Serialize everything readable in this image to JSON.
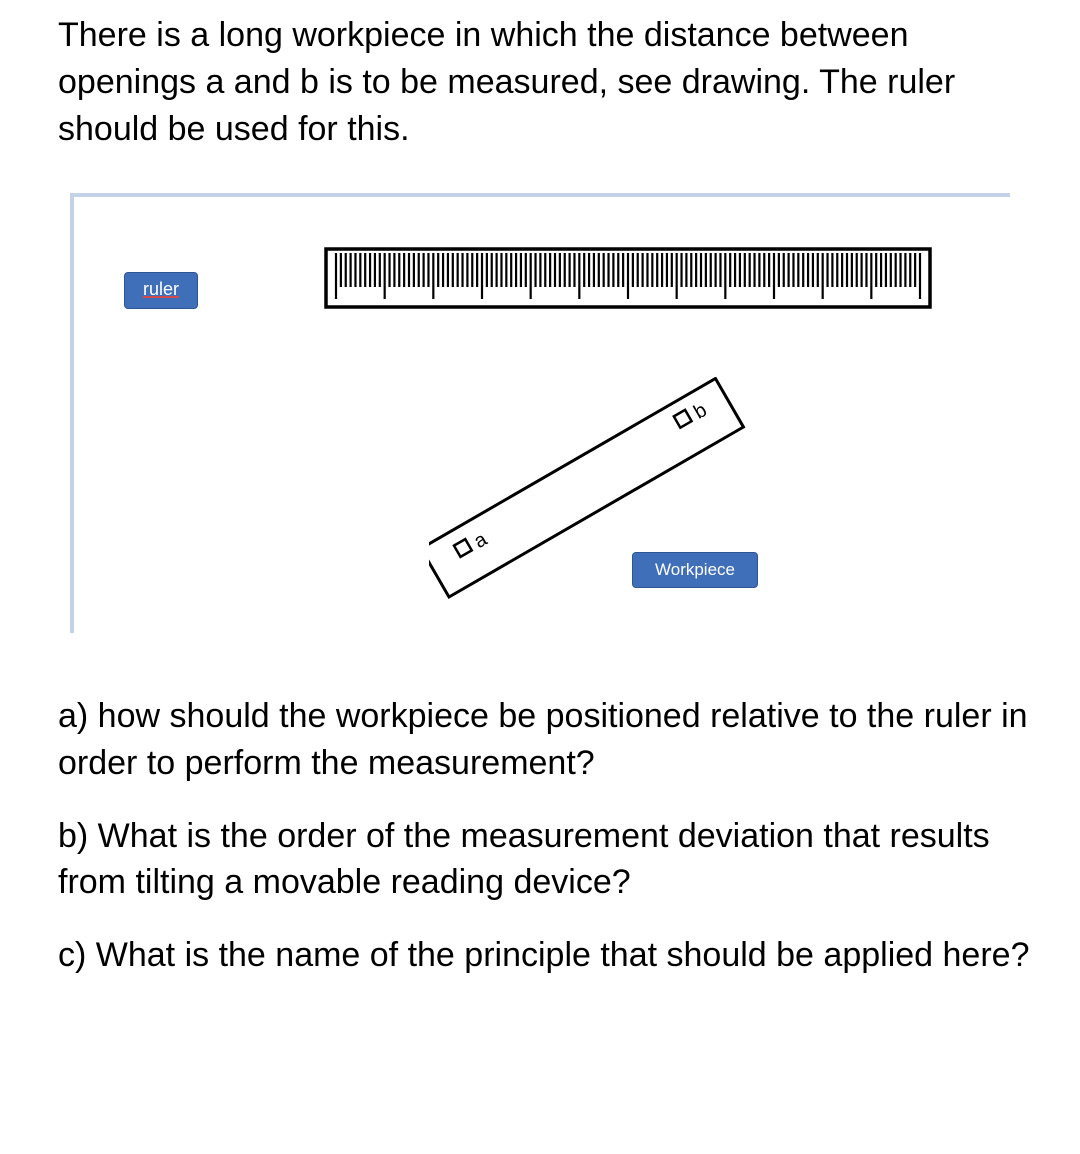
{
  "intro": "There is a long workpiece in which the distance between openings a and b is to be measured, see drawing. The ruler should be used for this.",
  "figure": {
    "ruler_label": "ruler",
    "workpiece_label": "Workpiece",
    "opening_a_label": "a",
    "opening_b_label": "b",
    "colors": {
      "frame_border": "#c4d2e8",
      "tag_bg": "#3f6fb9",
      "tag_border": "#2e5596",
      "tag_text": "#ffffff",
      "stroke": "#000000"
    }
  },
  "questions": {
    "a": "a) how should the workpiece be positioned relative to the ruler in order to perform the measurement?",
    "b": "b) What is the order of the measurement deviation that results from tilting a movable reading device?",
    "c": "c) What is the name of the principle that should be applied here?"
  }
}
